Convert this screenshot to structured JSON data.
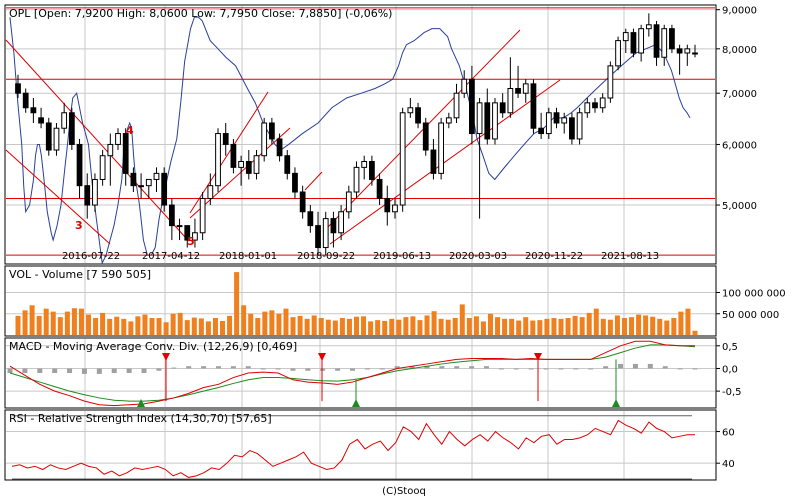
{
  "footer": "(C)Stooq",
  "chart_data": [
    {
      "type": "candlestick",
      "title": "OPL [Open: 7,9200  High: 8,0600  Low: 7,7950  Close: 7,8850] (-0,06%)",
      "x_ticks": [
        "2016-07-22",
        "2017-04-12",
        "2018-01-01",
        "2018-09-22",
        "2019-06-13",
        "2020-03-03",
        "2020-11-22",
        "2021-08-13"
      ],
      "y_ticks": [
        "9,0000",
        "8,0000",
        "7,0000",
        "6,0000",
        "5,0000"
      ],
      "y_scale": "log",
      "ylim": [
        4.2,
        9.1
      ],
      "grid": true,
      "candles": [
        [
          7.2,
          7.4,
          6.9,
          7.0
        ],
        [
          7.0,
          7.1,
          6.6,
          6.7
        ],
        [
          6.7,
          6.9,
          6.4,
          6.6
        ],
        [
          6.5,
          6.7,
          6.3,
          6.4
        ],
        [
          6.4,
          6.5,
          5.8,
          5.9
        ],
        [
          5.9,
          6.4,
          5.8,
          6.3
        ],
        [
          6.3,
          6.8,
          6.2,
          6.6
        ],
        [
          6.6,
          6.7,
          5.9,
          6.0
        ],
        [
          6.0,
          6.1,
          5.1,
          5.3
        ],
        [
          5.3,
          5.5,
          4.8,
          5.0
        ],
        [
          5.0,
          5.5,
          4.9,
          5.4
        ],
        [
          5.4,
          5.9,
          5.3,
          5.8
        ],
        [
          5.8,
          6.2,
          5.3,
          6.0
        ],
        [
          6.0,
          6.3,
          5.9,
          6.2
        ],
        [
          6.2,
          6.3,
          5.3,
          5.5
        ],
        [
          5.5,
          5.6,
          5.2,
          5.3
        ],
        [
          5.3,
          5.5,
          5.1,
          5.3
        ],
        [
          5.3,
          5.4,
          5.1,
          5.4
        ],
        [
          5.4,
          5.6,
          5.2,
          5.5
        ],
        [
          5.5,
          5.6,
          4.9,
          5.0
        ],
        [
          5.0,
          5.1,
          4.5,
          4.7
        ],
        [
          4.7,
          4.8,
          4.5,
          4.7
        ],
        [
          4.7,
          4.7,
          4.4,
          4.5
        ],
        [
          4.5,
          4.8,
          4.4,
          4.6
        ],
        [
          4.6,
          5.2,
          4.5,
          5.1
        ],
        [
          5.1,
          5.5,
          5.0,
          5.3
        ],
        [
          5.3,
          6.3,
          5.2,
          6.2
        ],
        [
          6.2,
          6.4,
          5.8,
          6.0
        ],
        [
          6.0,
          6.1,
          5.5,
          5.6
        ],
        [
          5.6,
          5.8,
          5.3,
          5.7
        ],
        [
          5.7,
          5.9,
          5.4,
          5.5
        ],
        [
          5.5,
          5.9,
          5.4,
          5.8
        ],
        [
          5.8,
          6.5,
          5.7,
          6.4
        ],
        [
          6.4,
          6.5,
          6.0,
          6.1
        ],
        [
          6.1,
          6.2,
          5.7,
          5.8
        ],
        [
          5.8,
          5.9,
          5.4,
          5.5
        ],
        [
          5.5,
          5.6,
          5.1,
          5.2
        ],
        [
          5.2,
          5.3,
          4.8,
          4.9
        ],
        [
          4.9,
          5.0,
          4.6,
          4.7
        ],
        [
          4.7,
          4.9,
          4.3,
          4.4
        ],
        [
          4.4,
          4.9,
          4.3,
          4.8
        ],
        [
          4.8,
          4.9,
          4.4,
          4.6
        ],
        [
          4.6,
          5.0,
          4.5,
          4.9
        ],
        [
          4.9,
          5.3,
          4.8,
          5.2
        ],
        [
          5.2,
          5.7,
          5.1,
          5.6
        ],
        [
          5.6,
          5.8,
          5.4,
          5.7
        ],
        [
          5.7,
          5.8,
          5.3,
          5.4
        ],
        [
          5.4,
          5.5,
          5.0,
          5.1
        ],
        [
          5.1,
          5.3,
          4.7,
          4.9
        ],
        [
          4.9,
          5.1,
          4.8,
          5.0
        ],
        [
          5.0,
          6.7,
          4.9,
          6.6
        ],
        [
          6.6,
          6.9,
          6.5,
          6.7
        ],
        [
          6.7,
          6.8,
          6.3,
          6.4
        ],
        [
          6.4,
          6.5,
          5.8,
          5.9
        ],
        [
          5.9,
          6.1,
          5.4,
          5.5
        ],
        [
          5.5,
          6.5,
          5.4,
          6.4
        ],
        [
          6.4,
          6.6,
          6.3,
          6.5
        ],
        [
          6.5,
          7.2,
          6.4,
          7.0
        ],
        [
          7.0,
          7.5,
          6.9,
          7.3
        ],
        [
          7.3,
          7.6,
          6.0,
          6.2
        ],
        [
          6.2,
          6.9,
          4.8,
          6.8
        ],
        [
          6.8,
          7.1,
          6.0,
          6.1
        ],
        [
          6.1,
          6.9,
          6.0,
          6.8
        ],
        [
          6.8,
          7.0,
          6.5,
          6.6
        ],
        [
          6.6,
          7.8,
          6.5,
          7.1
        ],
        [
          7.1,
          7.6,
          6.9,
          7.0
        ],
        [
          7.0,
          7.3,
          6.8,
          7.2
        ],
        [
          7.2,
          7.3,
          6.2,
          6.3
        ],
        [
          6.3,
          6.6,
          6.1,
          6.2
        ],
        [
          6.2,
          6.7,
          6.1,
          6.6
        ],
        [
          6.6,
          6.7,
          6.3,
          6.4
        ],
        [
          6.4,
          6.6,
          6.2,
          6.5
        ],
        [
          6.5,
          6.6,
          6.0,
          6.1
        ],
        [
          6.1,
          6.7,
          6.0,
          6.6
        ],
        [
          6.6,
          6.9,
          6.5,
          6.8
        ],
        [
          6.8,
          6.9,
          6.6,
          6.7
        ],
        [
          6.7,
          7.0,
          6.6,
          6.9
        ],
        [
          6.9,
          7.7,
          6.8,
          7.6
        ],
        [
          7.6,
          8.3,
          7.5,
          8.2
        ],
        [
          8.2,
          8.5,
          7.9,
          8.4
        ],
        [
          8.4,
          8.5,
          7.8,
          7.9
        ],
        [
          7.9,
          8.6,
          7.7,
          8.5
        ],
        [
          8.5,
          8.9,
          8.3,
          8.6
        ],
        [
          8.6,
          8.7,
          7.6,
          7.8
        ],
        [
          7.8,
          8.6,
          7.6,
          8.5
        ],
        [
          8.5,
          8.6,
          7.9,
          8.0
        ],
        [
          8.0,
          8.1,
          7.4,
          7.9
        ],
        [
          7.9,
          8.1,
          7.6,
          8.0
        ],
        [
          7.9,
          8.1,
          7.8,
          7.9
        ]
      ],
      "moving_average": [
        [
          2,
          8.8
        ],
        [
          6,
          7.9
        ],
        [
          10,
          6.8
        ],
        [
          14,
          6.0
        ],
        [
          16,
          5.3
        ],
        [
          18,
          4.9
        ],
        [
          22,
          5.0
        ],
        [
          26,
          5.4
        ],
        [
          28,
          5.8
        ],
        [
          30,
          6.0
        ],
        [
          32,
          6.0
        ],
        [
          34,
          5.8
        ],
        [
          36,
          5.5
        ],
        [
          38,
          5.2
        ],
        [
          40,
          4.9
        ],
        [
          44,
          4.6
        ],
        [
          46,
          4.5
        ],
        [
          50,
          4.7
        ],
        [
          54,
          5.0
        ],
        [
          58,
          5.6
        ],
        [
          60,
          5.9
        ],
        [
          64,
          6.6
        ],
        [
          66,
          6.9
        ],
        [
          70,
          7.0
        ],
        [
          76,
          6.4
        ],
        [
          79,
          6.2
        ],
        [
          82,
          6.0
        ],
        [
          86,
          5.3
        ],
        [
          90,
          4.8
        ],
        [
          96,
          4.2
        ],
        [
          100,
          4.3
        ],
        [
          104,
          4.5
        ],
        [
          108,
          4.7
        ],
        [
          112,
          5.0
        ],
        [
          116,
          5.4
        ],
        [
          118,
          5.9
        ],
        [
          120,
          6.1
        ],
        [
          122,
          6.3
        ],
        [
          124,
          6.4
        ],
        [
          126,
          6.3
        ],
        [
          128,
          5.8
        ],
        [
          130,
          5.4
        ],
        [
          134,
          5.0
        ],
        [
          138,
          4.5
        ],
        [
          142,
          4.3
        ],
        [
          146,
          4.3
        ],
        [
          150,
          4.4
        ],
        [
          154,
          4.8
        ],
        [
          158,
          5.1
        ],
        [
          162,
          5.4
        ],
        [
          166,
          5.7
        ],
        [
          172,
          6.1
        ],
        [
          176,
          6.8
        ],
        [
          180,
          7.7
        ],
        [
          186,
          8.5
        ],
        [
          190,
          8.8
        ],
        [
          194,
          8.8
        ],
        [
          198,
          8.7
        ],
        [
          206,
          8.2
        ],
        [
          214,
          8.0
        ],
        [
          222,
          7.8
        ],
        [
          232,
          7.6
        ],
        [
          244,
          7.1
        ],
        [
          252,
          6.8
        ],
        [
          260,
          6.4
        ],
        [
          266,
          6.2
        ],
        [
          272,
          6.0
        ],
        [
          278,
          5.9
        ],
        [
          286,
          6.0
        ],
        [
          300,
          6.2
        ],
        [
          316,
          6.4
        ],
        [
          330,
          6.7
        ],
        [
          345,
          6.9
        ],
        [
          360,
          7.0
        ],
        [
          374,
          7.1
        ],
        [
          384,
          7.2
        ],
        [
          392,
          7.3
        ],
        [
          398,
          7.6
        ],
        [
          402,
          7.9
        ],
        [
          406,
          8.1
        ],
        [
          414,
          8.2
        ],
        [
          424,
          8.4
        ],
        [
          432,
          8.5
        ],
        [
          440,
          8.5
        ],
        [
          448,
          8.3
        ],
        [
          452,
          8.0
        ],
        [
          460,
          7.6
        ],
        [
          468,
          7.0
        ],
        [
          474,
          6.5
        ],
        [
          478,
          6.1
        ],
        [
          484,
          5.8
        ],
        [
          490,
          5.5
        ],
        [
          496,
          5.4
        ],
        [
          506,
          5.6
        ],
        [
          516,
          5.8
        ],
        [
          526,
          6.0
        ],
        [
          536,
          6.2
        ],
        [
          546,
          6.3
        ],
        [
          556,
          6.5
        ],
        [
          566,
          6.5
        ],
        [
          574,
          6.6
        ],
        [
          580,
          6.7
        ],
        [
          590,
          6.9
        ],
        [
          600,
          7.1
        ],
        [
          610,
          7.3
        ],
        [
          620,
          7.5
        ],
        [
          630,
          7.7
        ],
        [
          640,
          7.9
        ],
        [
          650,
          8.0
        ],
        [
          660,
          8.1
        ],
        [
          668,
          7.9
        ],
        [
          672,
          7.7
        ],
        [
          676,
          7.5
        ],
        [
          680,
          7.2
        ],
        [
          684,
          6.9
        ],
        [
          688,
          6.7
        ],
        [
          692,
          6.6
        ],
        [
          695,
          6.5
        ]
      ],
      "annotations": [
        "4",
        "3",
        "5"
      ]
    },
    {
      "type": "bar",
      "title": "VOL - Volume [7 590 505]",
      "y_ticks": [
        "100 000 000",
        "50 000 000"
      ],
      "ylim": [
        0,
        160000000
      ],
      "values": [
        45,
        58,
        70,
        45,
        62,
        55,
        42,
        55,
        63,
        62,
        48,
        40,
        52,
        38,
        43,
        38,
        32,
        44,
        48,
        40,
        40,
        30,
        50,
        52,
        35,
        41,
        39,
        32,
        40,
        33,
        45,
        148,
        70,
        50,
        40,
        55,
        58,
        50,
        62,
        42,
        45,
        38,
        46,
        40,
        36,
        34,
        40,
        38,
        43,
        44,
        32,
        35,
        33,
        38,
        36,
        42,
        44,
        35,
        46,
        56,
        38,
        36,
        40,
        72,
        40,
        44,
        32,
        50,
        42,
        38,
        38,
        34,
        42,
        34,
        35,
        38,
        40,
        38,
        40,
        45,
        42,
        52,
        62,
        38,
        36,
        46,
        40,
        42,
        48,
        46,
        43,
        38,
        34,
        40,
        55,
        62,
        10
      ]
    },
    {
      "type": "line",
      "title": "MACD - Moving Average Conv. Div. (12,26,9) [0,469]",
      "y_ticks": [
        "0,5",
        "0,0",
        "-0,5"
      ],
      "ylim": [
        -0.85,
        0.65
      ],
      "macd": [
        0.05,
        -0.15,
        -0.35,
        -0.5,
        -0.6,
        -0.72,
        -0.8,
        -0.82,
        -0.8,
        -0.78,
        -0.72,
        -0.65,
        -0.55,
        -0.42,
        -0.35,
        -0.2,
        -0.1,
        -0.08,
        -0.1,
        -0.25,
        -0.3,
        -0.32,
        -0.35,
        -0.3,
        -0.2,
        -0.1,
        0.0,
        0.05,
        0.1,
        0.15,
        0.2,
        0.22,
        0.22,
        0.22,
        0.2,
        0.22,
        0.2,
        0.2,
        0.2,
        0.2,
        0.35,
        0.5,
        0.6,
        0.6,
        0.52,
        0.5,
        0.5
      ],
      "signal": [
        -0.1,
        -0.2,
        -0.3,
        -0.4,
        -0.5,
        -0.58,
        -0.65,
        -0.7,
        -0.72,
        -0.72,
        -0.7,
        -0.65,
        -0.58,
        -0.5,
        -0.42,
        -0.33,
        -0.25,
        -0.2,
        -0.2,
        -0.22,
        -0.25,
        -0.27,
        -0.28,
        -0.25,
        -0.2,
        -0.12,
        -0.05,
        0.0,
        0.05,
        0.1,
        0.14,
        0.17,
        0.2,
        0.2,
        0.2,
        0.2,
        0.2,
        0.2,
        0.2,
        0.2,
        0.25,
        0.35,
        0.45,
        0.52,
        0.52,
        0.5,
        0.48
      ],
      "histogram": [
        -0.1,
        -0.1,
        -0.1,
        -0.1,
        -0.1,
        -0.12,
        -0.12,
        -0.1,
        -0.1,
        -0.1,
        -0.05,
        0.02,
        0.05,
        0.05,
        0.05,
        0.05,
        0.05,
        0.0,
        0.0,
        -0.05,
        -0.05,
        -0.05,
        -0.05,
        -0.05,
        0.0,
        0.0,
        0.05,
        0.05,
        0.05,
        0.05,
        0.05,
        0.05,
        0.05,
        0.0,
        0.0,
        0.0,
        0.0,
        0.0,
        0.0,
        0.0,
        0.05,
        0.1,
        0.1,
        0.1,
        0.05,
        0.0,
        0.0
      ],
      "sell_signals": [
        0.33,
        0.6,
        0.82
      ],
      "buy_signals": [
        0.27,
        0.45,
        0.63,
        1.21
      ]
    },
    {
      "type": "line",
      "title": "RSI - Relative Strength Index (14,30,70) [57,65]",
      "y_ticks": [
        "60",
        "40"
      ],
      "ylim": [
        30,
        73
      ],
      "reference_levels": [
        70,
        30
      ],
      "values": [
        38,
        39,
        37,
        38,
        36,
        39,
        37,
        36,
        38,
        40,
        38,
        37,
        33,
        35,
        32,
        34,
        37,
        36,
        37,
        38,
        36,
        32,
        34,
        31,
        32,
        34,
        37,
        36,
        40,
        45,
        44,
        48,
        46,
        42,
        38,
        40,
        42,
        44,
        47,
        40,
        38,
        36,
        37,
        42,
        52,
        55,
        49,
        52,
        54,
        48,
        53,
        63,
        60,
        55,
        65,
        58,
        52,
        60,
        55,
        51,
        55,
        58,
        54,
        60,
        56,
        53,
        49,
        56,
        53,
        57,
        58,
        52,
        55,
        55,
        56,
        58,
        62,
        60,
        58,
        67,
        64,
        62,
        59,
        66,
        62,
        60,
        56,
        57,
        58,
        58
      ]
    }
  ]
}
